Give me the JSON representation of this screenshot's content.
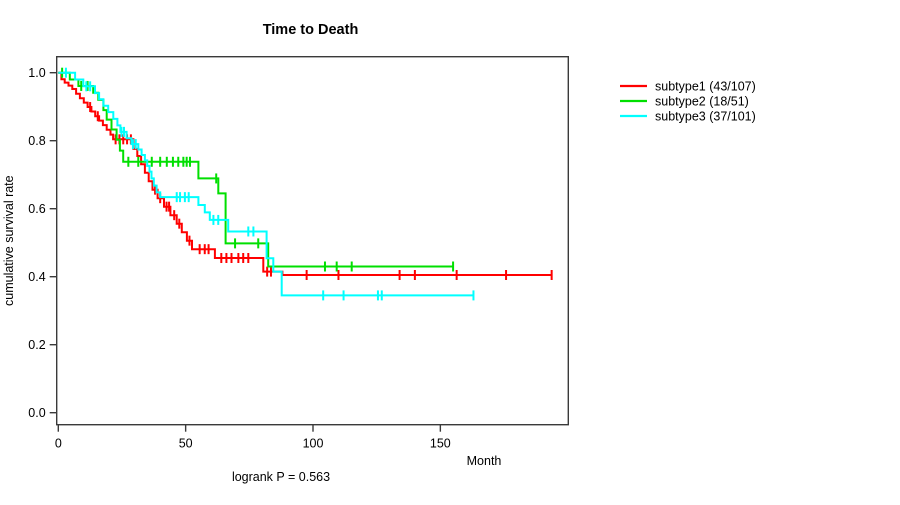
{
  "chart_data": {
    "type": "line",
    "chart_style": "kaplan-meier-survival-step",
    "title": "Time to Death",
    "xlabel": "Month",
    "ylabel": "cumulative survival rate",
    "footnote": "logrank P = 0.563",
    "xlim": [
      0,
      200
    ],
    "ylim": [
      0.0,
      1.0
    ],
    "xticks": [
      0,
      50,
      100,
      150
    ],
    "yticks": [
      0.0,
      0.2,
      0.4,
      0.6,
      0.8,
      1.0
    ],
    "grid": false,
    "legend_position": "right-outside",
    "legend": [
      {
        "label": "subtype1 (43/107)",
        "color": "#FF0000"
      },
      {
        "label": "subtype2 (18/51)",
        "color": "#00DF00"
      },
      {
        "label": "subtype3 (37/101)",
        "color": "#00FFFF"
      }
    ],
    "series": [
      {
        "name": "subtype1 (43/107)",
        "color": "#FF0000",
        "end_month": 193.7,
        "steps": [
          [
            0,
            1
          ],
          [
            1.2,
            0.981
          ],
          [
            2.5,
            0.971
          ],
          [
            4,
            0.962
          ],
          [
            5.5,
            0.952
          ],
          [
            7,
            0.938
          ],
          [
            8.5,
            0.925
          ],
          [
            10,
            0.912
          ],
          [
            11.5,
            0.899
          ],
          [
            13,
            0.886
          ],
          [
            14.5,
            0.872
          ],
          [
            16,
            0.859
          ],
          [
            17.5,
            0.846
          ],
          [
            19,
            0.832
          ],
          [
            20.5,
            0.818
          ],
          [
            21.5,
            0.804
          ],
          [
            29.5,
            0.776
          ],
          [
            31,
            0.755
          ],
          [
            32.5,
            0.731
          ],
          [
            34,
            0.706
          ],
          [
            35.5,
            0.681
          ],
          [
            37,
            0.656
          ],
          [
            39,
            0.631
          ],
          [
            41.5,
            0.606
          ],
          [
            44,
            0.581
          ],
          [
            46.5,
            0.556
          ],
          [
            48.5,
            0.531
          ],
          [
            50.5,
            0.506
          ],
          [
            52.5,
            0.481
          ],
          [
            61.5,
            0.455
          ],
          [
            80.5,
            0.415
          ],
          [
            88,
            0.405
          ]
        ],
        "censor_marks": [
          [
            12.5,
            0.899
          ],
          [
            15.5,
            0.872
          ],
          [
            22.5,
            0.804
          ],
          [
            24,
            0.804
          ],
          [
            25.5,
            0.804
          ],
          [
            27,
            0.804
          ],
          [
            28.5,
            0.804
          ],
          [
            38,
            0.656
          ],
          [
            40,
            0.631
          ],
          [
            42.5,
            0.606
          ],
          [
            43.5,
            0.606
          ],
          [
            45.5,
            0.581
          ],
          [
            47.5,
            0.556
          ],
          [
            51.5,
            0.506
          ],
          [
            55.5,
            0.481
          ],
          [
            57.5,
            0.481
          ],
          [
            59,
            0.481
          ],
          [
            64,
            0.455
          ],
          [
            66,
            0.455
          ],
          [
            68,
            0.455
          ],
          [
            70.7,
            0.455
          ],
          [
            72.6,
            0.455
          ],
          [
            74.6,
            0.455
          ],
          [
            82,
            0.415
          ],
          [
            83.5,
            0.415
          ],
          [
            97.5,
            0.405
          ],
          [
            110,
            0.405
          ],
          [
            134,
            0.405
          ],
          [
            140,
            0.405
          ],
          [
            156.4,
            0.405
          ],
          [
            175.8,
            0.405
          ],
          [
            193.7,
            0.405
          ]
        ]
      },
      {
        "name": "subtype2 (18/51)",
        "color": "#00DF00",
        "end_month": 155,
        "steps": [
          [
            0,
            1
          ],
          [
            4.5,
            0.98
          ],
          [
            7.9,
            0.961
          ],
          [
            13.7,
            0.941
          ],
          [
            15.7,
            0.92
          ],
          [
            17.7,
            0.89
          ],
          [
            19,
            0.862
          ],
          [
            20.9,
            0.833
          ],
          [
            22.9,
            0.803
          ],
          [
            24.2,
            0.771
          ],
          [
            25.5,
            0.738
          ],
          [
            55,
            0.689
          ],
          [
            62.8,
            0.645
          ],
          [
            65.7,
            0.498
          ],
          [
            82.4,
            0.43
          ]
        ],
        "censor_marks": [
          [
            1.5,
            1
          ],
          [
            9,
            0.961
          ],
          [
            11.5,
            0.961
          ],
          [
            27.5,
            0.738
          ],
          [
            31.4,
            0.738
          ],
          [
            36.7,
            0.738
          ],
          [
            40,
            0.738
          ],
          [
            42.6,
            0.738
          ],
          [
            45,
            0.738
          ],
          [
            47.1,
            0.738
          ],
          [
            49.1,
            0.738
          ],
          [
            50.4,
            0.738
          ],
          [
            51.7,
            0.738
          ],
          [
            62,
            0.689
          ],
          [
            69.4,
            0.498
          ],
          [
            78.5,
            0.498
          ],
          [
            104.7,
            0.43
          ],
          [
            109.3,
            0.43
          ],
          [
            115.2,
            0.43
          ],
          [
            155,
            0.43
          ]
        ]
      },
      {
        "name": "subtype3 (37/101)",
        "color": "#00FFFF",
        "end_month": 163,
        "steps": [
          [
            0,
            1
          ],
          [
            6.6,
            0.98
          ],
          [
            9.8,
            0.96
          ],
          [
            14.4,
            0.94
          ],
          [
            16,
            0.922
          ],
          [
            17.7,
            0.903
          ],
          [
            19.6,
            0.884
          ],
          [
            21.6,
            0.864
          ],
          [
            23.2,
            0.845
          ],
          [
            24.4,
            0.826
          ],
          [
            26.8,
            0.807
          ],
          [
            28.7,
            0.79
          ],
          [
            31.4,
            0.774
          ],
          [
            32.7,
            0.758
          ],
          [
            34,
            0.742
          ],
          [
            34.9,
            0.726
          ],
          [
            35.8,
            0.709
          ],
          [
            36.6,
            0.689
          ],
          [
            37.5,
            0.668
          ],
          [
            38.6,
            0.648
          ],
          [
            40,
            0.634
          ],
          [
            55,
            0.611
          ],
          [
            57.5,
            0.589
          ],
          [
            59.5,
            0.567
          ],
          [
            66.7,
            0.533
          ],
          [
            81.8,
            0.454
          ],
          [
            84.4,
            0.415
          ],
          [
            87.7,
            0.345
          ]
        ],
        "censor_marks": [
          [
            3,
            1
          ],
          [
            11,
            0.96
          ],
          [
            12.5,
            0.96
          ],
          [
            24.8,
            0.826
          ],
          [
            25.8,
            0.826
          ],
          [
            29.3,
            0.79
          ],
          [
            30.4,
            0.79
          ],
          [
            46.5,
            0.634
          ],
          [
            47.8,
            0.634
          ],
          [
            49.7,
            0.634
          ],
          [
            51.2,
            0.634
          ],
          [
            60.9,
            0.567
          ],
          [
            62.8,
            0.567
          ],
          [
            74.6,
            0.533
          ],
          [
            76.6,
            0.533
          ],
          [
            104,
            0.345
          ],
          [
            112,
            0.345
          ],
          [
            125.5,
            0.345
          ],
          [
            127,
            0.345
          ],
          [
            163,
            0.345
          ]
        ]
      }
    ]
  }
}
